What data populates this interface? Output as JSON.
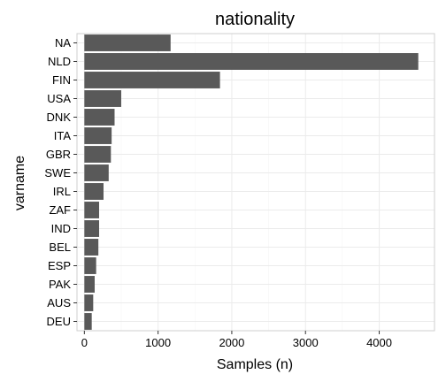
{
  "chart_data": {
    "type": "bar",
    "orientation": "horizontal",
    "title": "nationality",
    "xlabel": "Samples (n)",
    "ylabel": "varname",
    "categories": [
      "NA",
      "NLD",
      "FIN",
      "USA",
      "DNK",
      "ITA",
      "GBR",
      "SWE",
      "IRL",
      "ZAF",
      "IND",
      "BEL",
      "ESP",
      "PAK",
      "AUS",
      "DEU"
    ],
    "values": [
      1170,
      4530,
      1840,
      500,
      410,
      370,
      360,
      330,
      260,
      200,
      200,
      190,
      160,
      140,
      120,
      100
    ],
    "xlim": [
      -100,
      4750
    ],
    "xticks": [
      0,
      1000,
      2000,
      3000,
      4000
    ],
    "grid": true,
    "legend": "none",
    "bar_color": "#595959"
  }
}
